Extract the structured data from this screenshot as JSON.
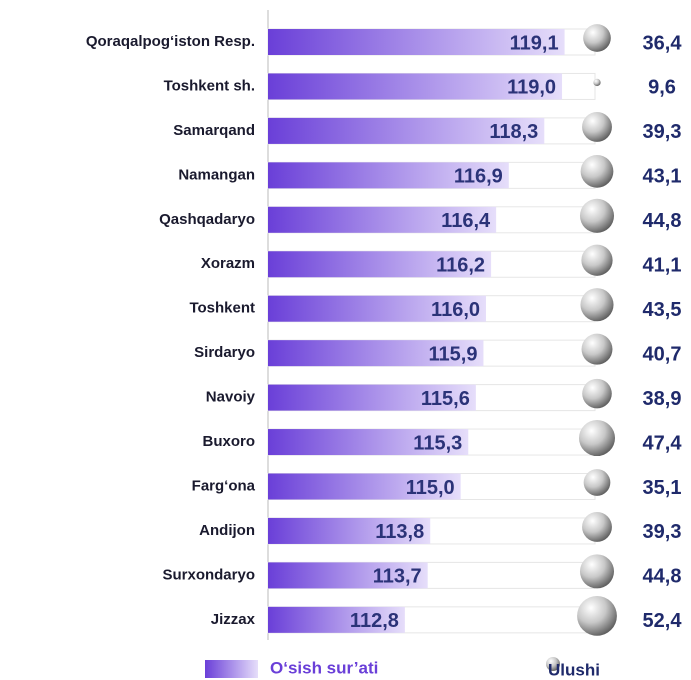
{
  "chart_data": {
    "type": "bar",
    "categories": [
      "Qoraqalpog‘iston Resp.",
      "Toshkent sh.",
      "Samarqand",
      "Namangan",
      "Qashqadaryo",
      "Xorazm",
      "Toshkent",
      "Sirdaryo",
      "Navoiy",
      "Buxoro",
      "Farg‘ona",
      "Andijon",
      "Surxondaryo",
      "Jizzax"
    ],
    "series": [
      {
        "name": "O‘sish sur’ati",
        "color": "#6a3fd8",
        "values": [
          119.1,
          119.0,
          118.3,
          116.9,
          116.4,
          116.2,
          116.0,
          115.9,
          115.6,
          115.3,
          115.0,
          113.8,
          113.7,
          112.8
        ],
        "value_labels": [
          "119,1",
          "119,0",
          "118,3",
          "116,9",
          "116,4",
          "116,2",
          "116,0",
          "115,9",
          "115,6",
          "115,3",
          "115,0",
          "113,8",
          "113,7",
          "112,8"
        ]
      },
      {
        "name": "Ulushi",
        "color": "#9a9a9a",
        "values": [
          36.4,
          9.6,
          39.3,
          43.1,
          44.8,
          41.1,
          43.5,
          40.7,
          38.9,
          47.4,
          35.1,
          39.3,
          44.8,
          52.4
        ],
        "value_labels": [
          "36,4",
          "9,6",
          "39,3",
          "43,1",
          "44,8",
          "41,1",
          "43,5",
          "40,7",
          "38,9",
          "47,4",
          "35,1",
          "39,3",
          "44,8",
          "52,4"
        ]
      }
    ],
    "xlim": [
      107.4,
      120.3
    ]
  }
}
